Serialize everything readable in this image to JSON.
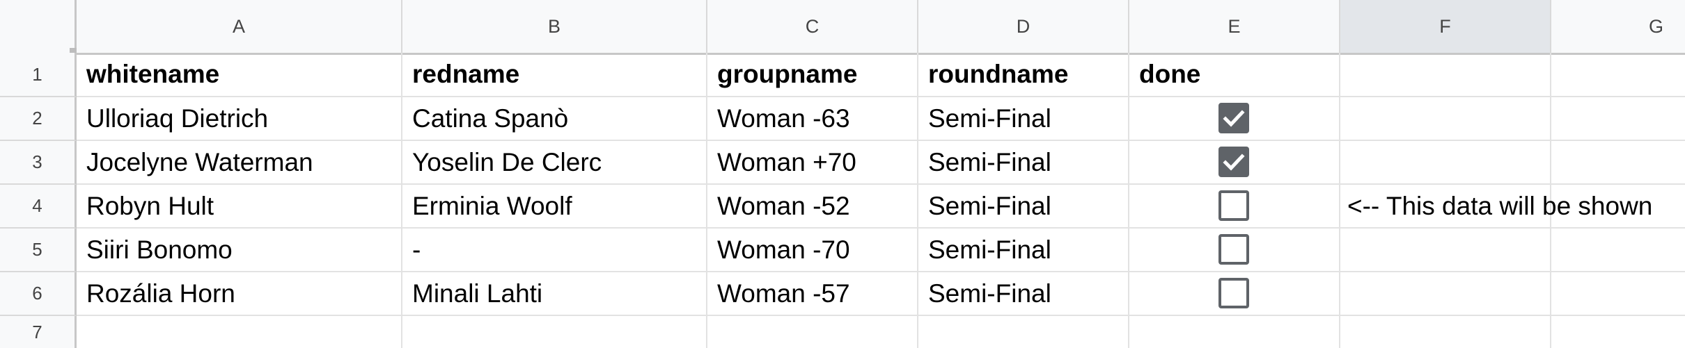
{
  "columns": [
    "A",
    "B",
    "C",
    "D",
    "E",
    "F",
    "G"
  ],
  "rows": [
    "1",
    "2",
    "3",
    "4",
    "5",
    "6",
    "7"
  ],
  "header": {
    "whitename": "whitename",
    "redname": "redname",
    "groupname": "groupname",
    "roundname": "roundname",
    "done": "done"
  },
  "data": [
    {
      "whitename": "Ulloriaq Dietrich",
      "redname": "Catina Spanò",
      "groupname": "Woman -63",
      "roundname": "Semi-Final",
      "done": true
    },
    {
      "whitename": "Jocelyne Waterman",
      "redname": "Yoselin De Clerc",
      "groupname": "Woman +70",
      "roundname": "Semi-Final",
      "done": true
    },
    {
      "whitename": "Robyn Hult",
      "redname": "Erminia Woolf",
      "groupname": "Woman -52",
      "roundname": "Semi-Final",
      "done": false
    },
    {
      "whitename": "Siiri Bonomo",
      "redname": "-",
      "groupname": "Woman -70",
      "roundname": "Semi-Final",
      "done": false
    },
    {
      "whitename": "Rozália Horn",
      "redname": "Minali Lahti",
      "groupname": "Woman -57",
      "roundname": "Semi-Final",
      "done": false
    }
  ],
  "note": "<-- This data will be shown",
  "colors": {
    "checkbox": "#5f6368",
    "header_bg": "#f8f9fa",
    "selected_col_header": "#e3e6ea"
  }
}
